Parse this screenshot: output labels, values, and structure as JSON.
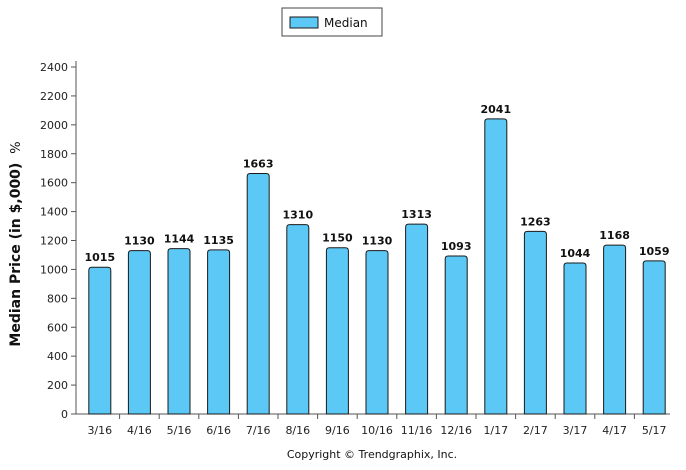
{
  "chart_data": {
    "type": "bar",
    "categories": [
      "3/16",
      "4/16",
      "5/16",
      "6/16",
      "7/16",
      "8/16",
      "9/16",
      "10/16",
      "11/16",
      "12/16",
      "1/17",
      "2/17",
      "3/17",
      "4/17",
      "5/17"
    ],
    "series": [
      {
        "name": "Median",
        "values": [
          1015,
          1130,
          1144,
          1135,
          1663,
          1310,
          1150,
          1130,
          1313,
          1093,
          2041,
          1263,
          1044,
          1168,
          1059
        ]
      }
    ],
    "ylabel": "Median Price (in $,000)",
    "ylabel_suffix": "%",
    "ylim": [
      0,
      2400
    ],
    "yticks": [
      0,
      200,
      400,
      600,
      800,
      1000,
      1200,
      1400,
      1600,
      1800,
      2000,
      2200,
      2400
    ],
    "legend_position": "top-center",
    "grid": false,
    "colors": {
      "bar_fill": "#5cc8f5",
      "bar_stroke": "#1a1a1a"
    }
  },
  "footer": {
    "copyright": "Copyright © Trendgraphix, Inc."
  }
}
